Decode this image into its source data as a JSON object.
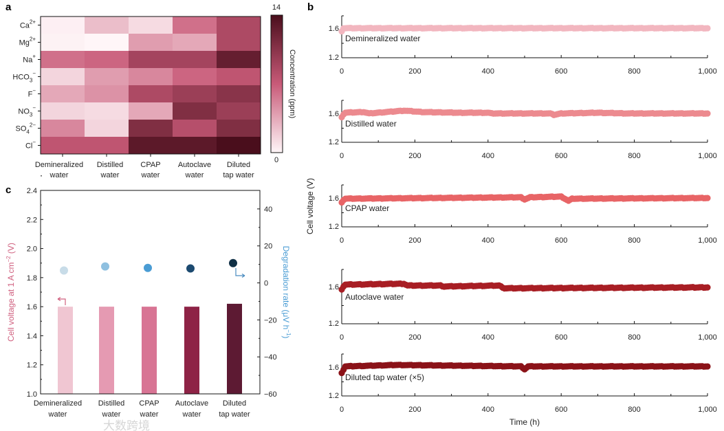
{
  "panel_letters": {
    "a": "a",
    "b": "b",
    "c": "c"
  },
  "watermark": "大数跨境",
  "chart_data": [
    {
      "id": "a",
      "type": "heatmap",
      "title": "",
      "categories": [
        [
          "Demineralized",
          "water"
        ],
        [
          "Distilled",
          "water"
        ],
        [
          "CPAP",
          "water"
        ],
        [
          "Autoclave",
          "water"
        ],
        [
          "Diluted",
          "tap water"
        ]
      ],
      "rows": [
        {
          "text": "Ca",
          "sup": "2+"
        },
        {
          "text": "Mg",
          "sup": "2+"
        },
        {
          "text": "Na",
          "sup": "+"
        },
        {
          "text": "HCO",
          "sub": "3",
          "sup": "−"
        },
        {
          "text": "F",
          "sup": "−"
        },
        {
          "text": "NO",
          "sub": "3",
          "sup": "−"
        },
        {
          "text": "SO",
          "sub": "4",
          "sup": "2−"
        },
        {
          "text": "Cl",
          "sup": "−"
        }
      ],
      "values": [
        [
          0.3,
          2.5,
          1.2,
          6.0,
          8.5
        ],
        [
          0.2,
          0.0,
          4.0,
          3.5,
          8.5
        ],
        [
          6.0,
          6.5,
          9.0,
          9.0,
          12.5
        ],
        [
          1.5,
          4.0,
          5.0,
          6.5,
          7.5
        ],
        [
          3.5,
          4.5,
          8.5,
          9.5,
          10.5
        ],
        [
          1.5,
          1.2,
          3.5,
          11.0,
          9.5
        ],
        [
          5.0,
          1.5,
          11.0,
          8.0,
          11.0
        ],
        [
          7.5,
          7.5,
          13.0,
          13.0,
          14.0
        ]
      ],
      "colorbar": {
        "label": "Concentration (ppm)",
        "min": 0,
        "max": 14,
        "min_label": "0",
        "max_label": "14",
        "colors": [
          "#fff6f8",
          "#c85a78",
          "#4a0e1c"
        ]
      }
    },
    {
      "id": "b",
      "type": "scatter",
      "xlabel": "Time (h)",
      "ylabel": "Cell voltage (V)",
      "xlim": [
        0,
        1000
      ],
      "ylim": [
        1.2,
        1.8
      ],
      "xticks": [
        "0",
        "200",
        "400",
        "600",
        "800",
        "1,000"
      ],
      "yticks": [
        "1.2",
        "1.6"
      ],
      "series": [
        {
          "name": "Demineralized water",
          "color": "#f2b6bf",
          "points": [
            [
              0,
              1.57
            ],
            [
              5,
              1.61
            ],
            [
              1000,
              1.61
            ]
          ]
        },
        {
          "name": "Distilled water",
          "color": "#ec8a8f",
          "points": [
            [
              0,
              1.56
            ],
            [
              8,
              1.62
            ],
            [
              60,
              1.63
            ],
            [
              75,
              1.61
            ],
            [
              170,
              1.65
            ],
            [
              220,
              1.63
            ],
            [
              320,
              1.62
            ],
            [
              400,
              1.62
            ],
            [
              410,
              1.61
            ],
            [
              570,
              1.61
            ],
            [
              580,
              1.59
            ],
            [
              600,
              1.61
            ],
            [
              700,
              1.62
            ],
            [
              780,
              1.61
            ],
            [
              1000,
              1.61
            ]
          ]
        },
        {
          "name": "CPAP water",
          "color": "#e86466",
          "points": [
            [
              0,
              1.55
            ],
            [
              8,
              1.6
            ],
            [
              490,
              1.62
            ],
            [
              500,
              1.59
            ],
            [
              515,
              1.62
            ],
            [
              600,
              1.63
            ],
            [
              620,
              1.57
            ],
            [
              630,
              1.6
            ],
            [
              1000,
              1.61
            ]
          ]
        },
        {
          "name": "Autoclave water",
          "color": "#a81e24",
          "points": [
            [
              0,
              1.58
            ],
            [
              8,
              1.63
            ],
            [
              170,
              1.64
            ],
            [
              180,
              1.62
            ],
            [
              270,
              1.62
            ],
            [
              280,
              1.61
            ],
            [
              430,
              1.62
            ],
            [
              445,
              1.59
            ],
            [
              1000,
              1.6
            ]
          ]
        },
        {
          "name": "Diluted tap water (×5)",
          "color": "#8b1218",
          "points": [
            [
              0,
              1.53
            ],
            [
              10,
              1.62
            ],
            [
              150,
              1.64
            ],
            [
              490,
              1.62
            ],
            [
              500,
              1.58
            ],
            [
              510,
              1.62
            ],
            [
              1000,
              1.62
            ]
          ]
        }
      ]
    },
    {
      "id": "c",
      "type": "bar",
      "categories": [
        [
          "Demineralized",
          "water"
        ],
        [
          "Distilled",
          "water"
        ],
        [
          "CPAP",
          "water"
        ],
        [
          "Autoclave",
          "water"
        ],
        [
          "Diluted",
          "tap water"
        ]
      ],
      "ylabel": "Cell voltage at 1 A cm−2 (V)",
      "ylabel_parts": {
        "main": "Cell voltage at 1 A cm",
        "sup": "−2",
        "unit": " (V)"
      },
      "ylim": [
        1.0,
        2.4
      ],
      "yticks": [
        "1.0",
        "1.2",
        "1.4",
        "1.6",
        "1.8",
        "2.0",
        "2.2",
        "2.4"
      ],
      "values": [
        1.6,
        1.6,
        1.6,
        1.6,
        1.62
      ],
      "bar_colors": [
        "#f0c6d2",
        "#e59ab2",
        "#d87494",
        "#8e2346",
        "#5d1a33"
      ],
      "y2label": "Degradation rate (μV h−1)",
      "y2label_parts": {
        "main": "Degradation rate (μV h",
        "sup": "−1",
        "unit": ")"
      },
      "y2lim": [
        -60,
        50
      ],
      "y2ticks": [
        "−60",
        "−40",
        "−20",
        "0",
        "20",
        "40"
      ],
      "y2values": [
        6.7,
        8.9,
        8.1,
        7.8,
        10.7
      ],
      "dot_colors": [
        "#c8dce8",
        "#8fc0e0",
        "#4a9cd4",
        "#1c4a70",
        "#0f2f45"
      ],
      "label_color": "#d0607f",
      "label2_color": "#4a9cd4"
    }
  ]
}
